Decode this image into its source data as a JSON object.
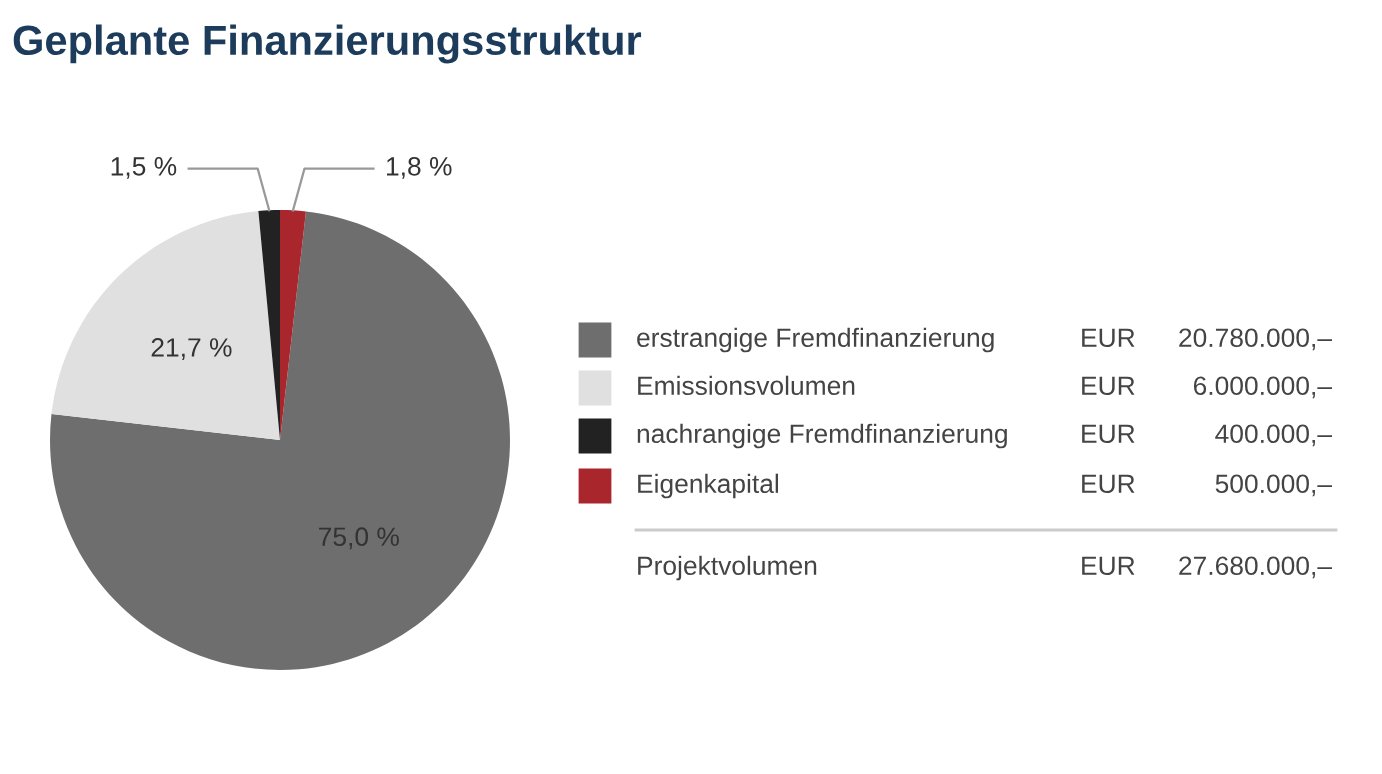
{
  "chart_data": {
    "type": "pie",
    "title": "Geplante Finanzierungsstruktur",
    "categories": [
      "erstrangige Fremdfinanzierung",
      "Emissionsvolumen",
      "nachrangige Fremdfinanzierung",
      "Eigenkapital"
    ],
    "values": [
      75.0,
      21.7,
      1.5,
      1.8
    ],
    "colors": [
      "#6e6e6e",
      "#e0e0e0",
      "#222222",
      "#a8262c"
    ],
    "value_labels": [
      "75,0 %",
      "21,7 %",
      "1,5 %",
      "1,8 %"
    ],
    "legend": "right",
    "annotations": [
      "EUR 20.780.000,–",
      "EUR 6.000.000,–",
      "EUR 400.000,–",
      "EUR 500.000,–",
      "Projektvolumen EUR 27.680.000,–"
    ]
  }
}
